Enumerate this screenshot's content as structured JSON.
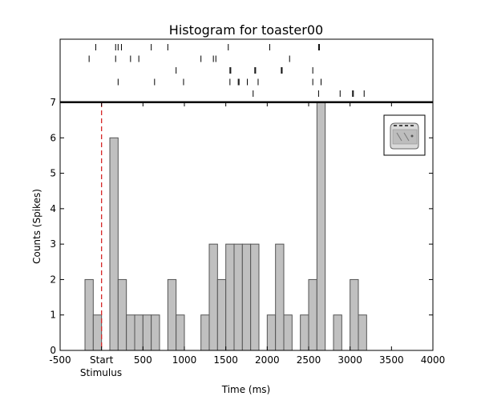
{
  "chart_data": {
    "type": "bar",
    "title": "Histogram for toaster00",
    "xlabel": "Time (ms)",
    "ylabel": "Counts (Spikes)",
    "xlim": [
      -500,
      4000
    ],
    "ylim": [
      0,
      7
    ],
    "xticks": [
      -500,
      0,
      500,
      1000,
      1500,
      2000,
      2500,
      3000,
      3500,
      4000
    ],
    "xtick_labels": [
      "-500",
      "Start",
      "500",
      "1000",
      "1500",
      "2000",
      "2500",
      "3000",
      "3500",
      "4000"
    ],
    "yticks": [
      0,
      1,
      2,
      3,
      4,
      5,
      6,
      7
    ],
    "stimulus_label": "Stimulus",
    "stimulus_start": 0,
    "stimulus_line_color": "#d62728",
    "bar_color": "#c0c0c0",
    "bar_edge_color": "#555555",
    "bin_width": 100,
    "bins": [
      {
        "x": -200,
        "count": 2
      },
      {
        "x": -100,
        "count": 1
      },
      {
        "x": 0,
        "count": 0
      },
      {
        "x": 100,
        "count": 6
      },
      {
        "x": 200,
        "count": 2
      },
      {
        "x": 300,
        "count": 1
      },
      {
        "x": 400,
        "count": 1
      },
      {
        "x": 500,
        "count": 1
      },
      {
        "x": 600,
        "count": 1
      },
      {
        "x": 700,
        "count": 0
      },
      {
        "x": 800,
        "count": 2
      },
      {
        "x": 900,
        "count": 1
      },
      {
        "x": 1000,
        "count": 0
      },
      {
        "x": 1100,
        "count": 0
      },
      {
        "x": 1200,
        "count": 1
      },
      {
        "x": 1300,
        "count": 3
      },
      {
        "x": 1400,
        "count": 2
      },
      {
        "x": 1500,
        "count": 3
      },
      {
        "x": 1600,
        "count": 3
      },
      {
        "x": 1700,
        "count": 3
      },
      {
        "x": 1800,
        "count": 3
      },
      {
        "x": 1900,
        "count": 0
      },
      {
        "x": 2000,
        "count": 1
      },
      {
        "x": 2100,
        "count": 3
      },
      {
        "x": 2200,
        "count": 1
      },
      {
        "x": 2300,
        "count": 0
      },
      {
        "x": 2400,
        "count": 1
      },
      {
        "x": 2500,
        "count": 2
      },
      {
        "x": 2600,
        "count": 7
      },
      {
        "x": 2700,
        "count": 0
      },
      {
        "x": 2800,
        "count": 1
      },
      {
        "x": 2900,
        "count": 0
      },
      {
        "x": 3000,
        "count": 2
      },
      {
        "x": 3100,
        "count": 1
      }
    ],
    "raster_trials": [
      [
        -70,
        170,
        200,
        240,
        600,
        800,
        1530,
        2030,
        2620,
        2630
      ],
      [
        -150,
        170,
        350,
        450,
        1200,
        1350,
        1380,
        2270
      ],
      [
        900,
        1550,
        1560,
        1850,
        1860,
        2170,
        2180,
        2550
      ],
      [
        200,
        640,
        990,
        1550,
        1650,
        1660,
        1760,
        1890,
        2550,
        2650
      ],
      [
        1830,
        2620,
        2880,
        3030,
        3040,
        3170
      ]
    ],
    "raster_color": "#000000",
    "icon": "toaster-icon"
  }
}
